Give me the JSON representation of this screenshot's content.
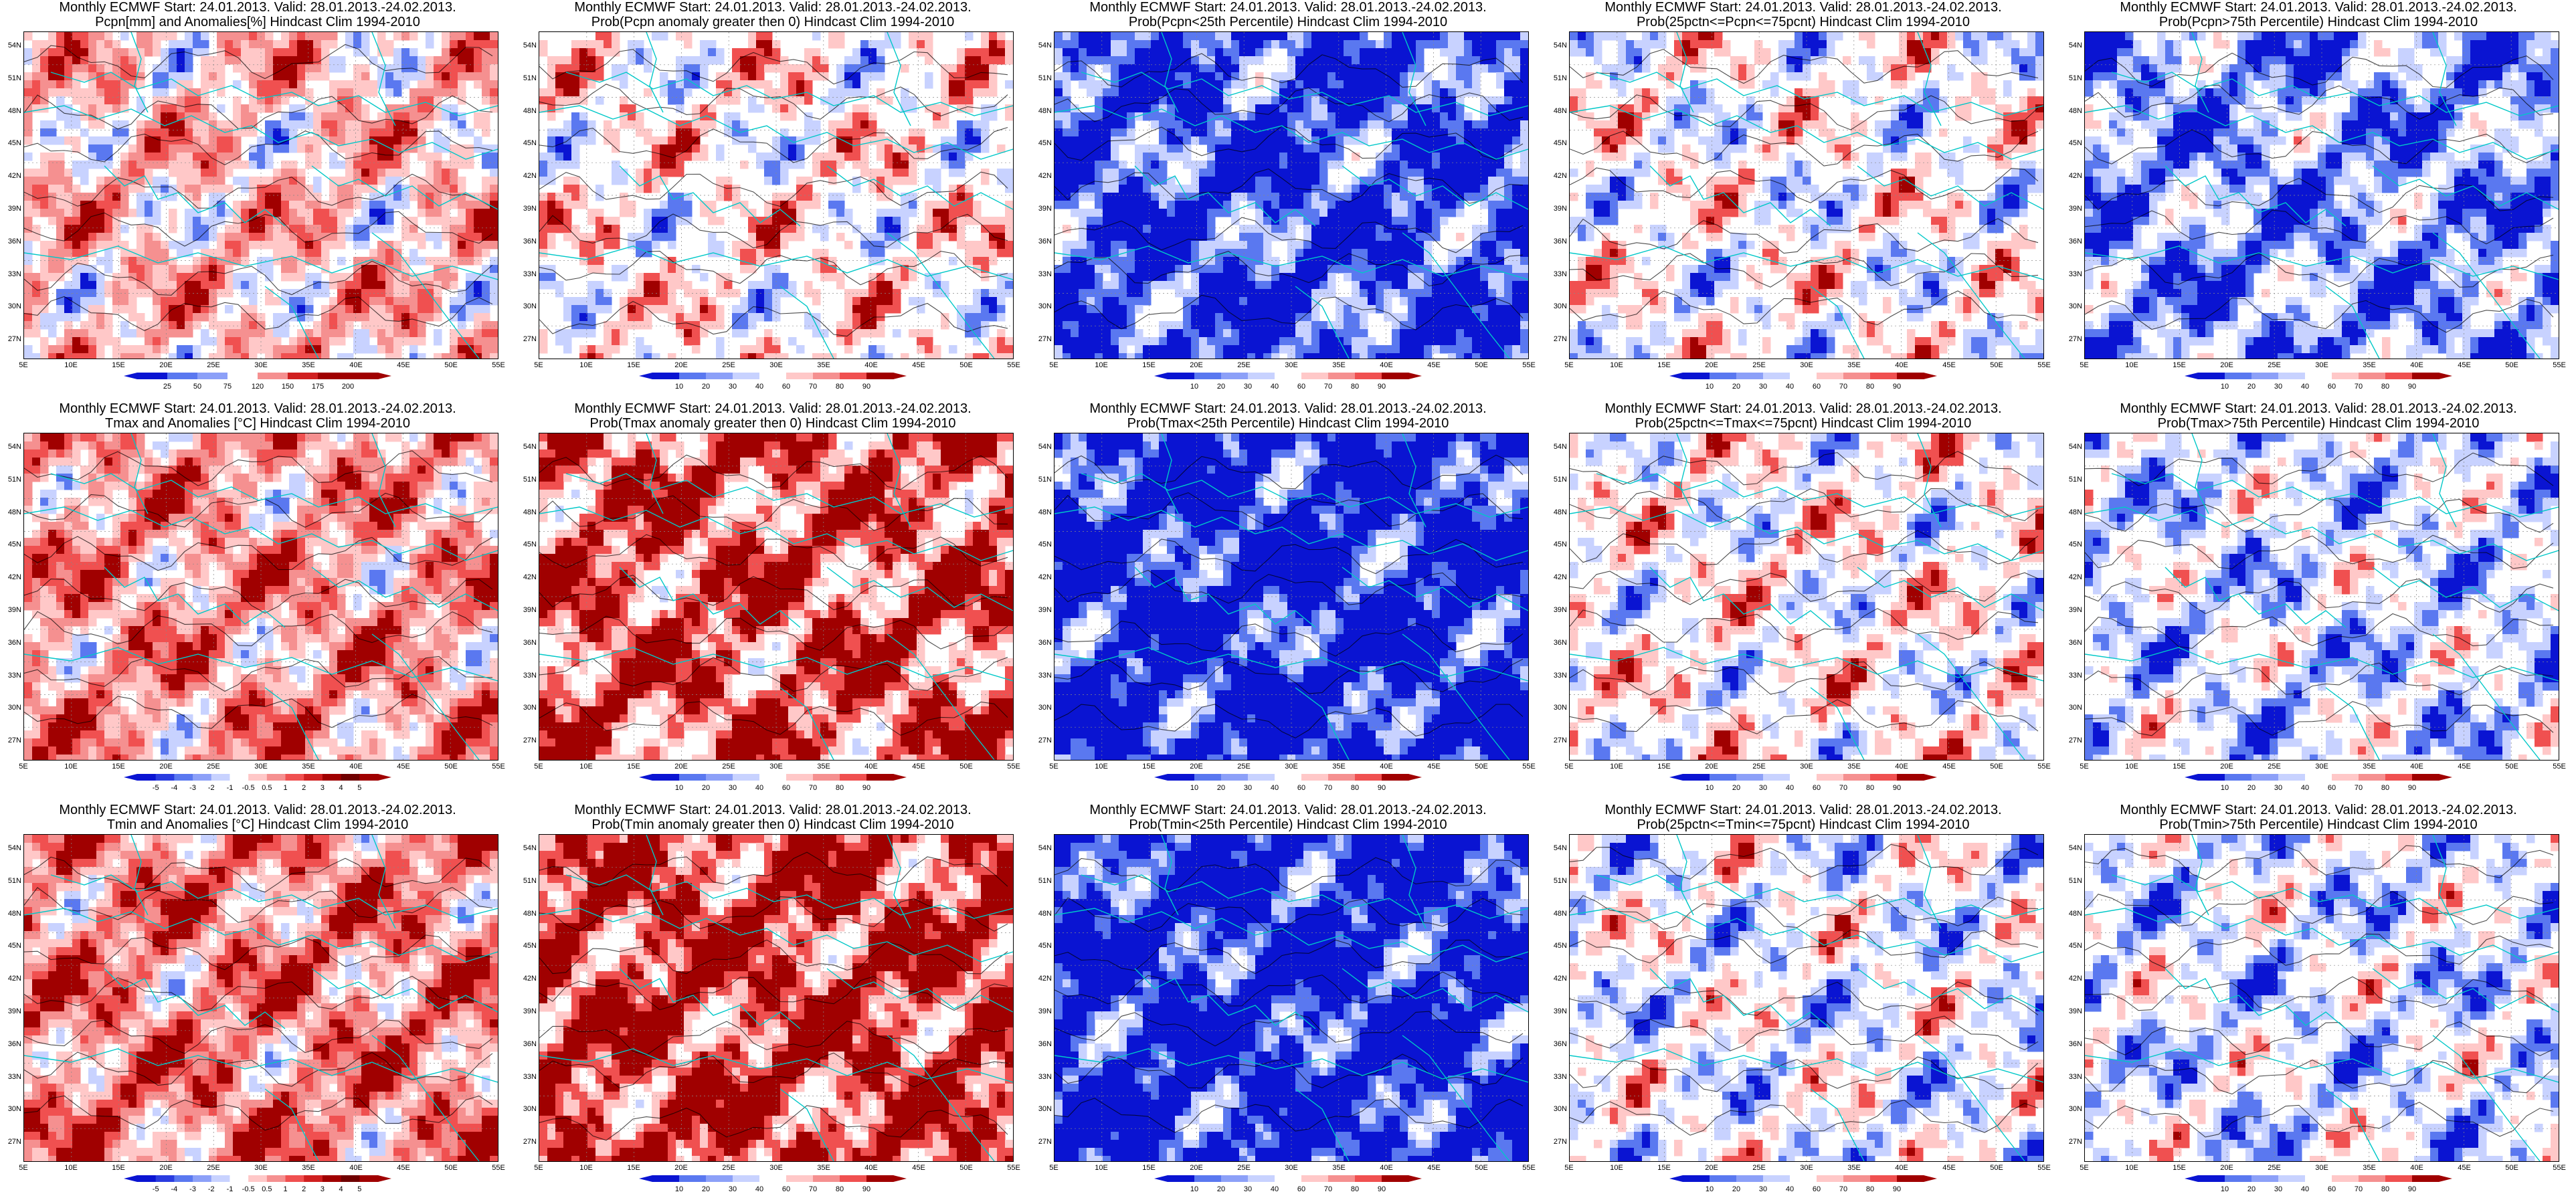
{
  "title_prefix": "Monthly ECMWF Start: 24.01.2013. Valid: 28.01.2013.-24.02.2013.",
  "lat_labels": [
    "54N",
    "51N",
    "48N",
    "45N",
    "42N",
    "39N",
    "36N",
    "33N",
    "30N",
    "27N"
  ],
  "lon_labels": [
    "5E",
    "10E",
    "15E",
    "20E",
    "25E",
    "30E",
    "35E",
    "40E",
    "45E",
    "50E",
    "55E"
  ],
  "colors": {
    "border": "#00c8c8",
    "contour": "#000000",
    "blue_dark": "#0a14d2",
    "blue_mid": "#5a78f0",
    "blue_light": "#c8d2ff",
    "red_light": "#ffc8c8",
    "red_mid": "#f05050",
    "red_dark": "#a00000"
  },
  "panels": [
    {
      "id": "p00",
      "title": "Pcpn[mm] and Anomalies[%] Hindcast Clim 1994-2010",
      "palette": "anom",
      "bias": 0.15,
      "seed": 3,
      "cbar_labels": [
        "25",
        "50",
        "75",
        "120",
        "150",
        "175",
        "200"
      ]
    },
    {
      "id": "p01",
      "title": "Prob(Pcpn anomaly greater then 0) Hindcast Clim 1994-2010",
      "palette": "prob",
      "bias": 0.1,
      "seed": 7,
      "cbar_labels": [
        "10",
        "20",
        "30",
        "40",
        "60",
        "70",
        "80",
        "90"
      ]
    },
    {
      "id": "p02",
      "title": "Prob(Pcpn<25th Percentile) Hindcast Clim 1994-2010",
      "palette": "prob",
      "bias": -0.85,
      "seed": 11,
      "cbar_labels": [
        "10",
        "20",
        "30",
        "40",
        "60",
        "70",
        "80",
        "90"
      ]
    },
    {
      "id": "p03",
      "title": "Prob(25pctn<=Pcpn<=75pcnt) Hindcast Clim 1994-2010",
      "palette": "prob",
      "bias": 0.0,
      "seed": 13,
      "cbar_labels": [
        "10",
        "20",
        "30",
        "40",
        "60",
        "70",
        "80",
        "90"
      ]
    },
    {
      "id": "p04",
      "title": "Prob(Pcpn>75th Percentile) Hindcast Clim 1994-2010",
      "palette": "prob",
      "bias": -0.55,
      "seed": 17,
      "cbar_labels": [
        "10",
        "20",
        "30",
        "40",
        "60",
        "70",
        "80",
        "90"
      ]
    },
    {
      "id": "p10",
      "title": "Tmax and Anomalies [°C] Hindcast Clim 1994-2010",
      "palette": "anom",
      "bias": 0.35,
      "seed": 19,
      "cbar_labels": [
        "-5",
        "-4",
        "-3",
        "-2",
        "-1",
        "-0.5",
        "0.5",
        "1",
        "2",
        "3",
        "4",
        "5"
      ]
    },
    {
      "id": "p11",
      "title": "Prob(Tmax anomaly greater then 0) Hindcast Clim 1994-2010",
      "palette": "prob",
      "bias": 0.7,
      "seed": 23,
      "cbar_labels": [
        "10",
        "20",
        "30",
        "40",
        "60",
        "70",
        "80",
        "90"
      ]
    },
    {
      "id": "p12",
      "title": "Prob(Tmax<25th Percentile) Hindcast Clim 1994-2010",
      "palette": "prob",
      "bias": -1.0,
      "seed": 29,
      "cbar_labels": [
        "10",
        "20",
        "30",
        "40",
        "60",
        "70",
        "80",
        "90"
      ]
    },
    {
      "id": "p13",
      "title": "Prob(25pctn<=Tmax<=75pcnt) Hindcast Clim 1994-2010",
      "palette": "prob",
      "bias": 0.05,
      "seed": 31,
      "cbar_labels": [
        "10",
        "20",
        "30",
        "40",
        "60",
        "70",
        "80",
        "90"
      ]
    },
    {
      "id": "p14",
      "title": "Prob(Tmax>75th Percentile) Hindcast Clim 1994-2010",
      "palette": "prob",
      "bias": -0.25,
      "seed": 37,
      "cbar_labels": [
        "10",
        "20",
        "30",
        "40",
        "60",
        "70",
        "80",
        "90"
      ]
    },
    {
      "id": "p20",
      "title": "Tmin and Anomalies [°C] Hindcast Clim 1994-2010",
      "palette": "anom",
      "bias": 0.45,
      "seed": 41,
      "cbar_labels": [
        "-5",
        "-4",
        "-3",
        "-2",
        "-1",
        "-0.5",
        "0.5",
        "1",
        "2",
        "3",
        "4",
        "5"
      ]
    },
    {
      "id": "p21",
      "title": "Prob(Tmin anomaly greater then 0) Hindcast Clim 1994-2010",
      "palette": "prob",
      "bias": 0.8,
      "seed": 43,
      "cbar_labels": [
        "10",
        "20",
        "30",
        "40",
        "60",
        "70",
        "80",
        "90"
      ]
    },
    {
      "id": "p22",
      "title": "Prob(Tmin<25th Percentile) Hindcast Clim 1994-2010",
      "palette": "prob",
      "bias": -1.0,
      "seed": 47,
      "cbar_labels": [
        "10",
        "20",
        "30",
        "40",
        "60",
        "70",
        "80",
        "90"
      ]
    },
    {
      "id": "p23",
      "title": "Prob(25pctn<=Tmin<=75pcnt) Hindcast Clim 1994-2010",
      "palette": "prob",
      "bias": -0.1,
      "seed": 53,
      "cbar_labels": [
        "10",
        "20",
        "30",
        "40",
        "60",
        "70",
        "80",
        "90"
      ]
    },
    {
      "id": "p24",
      "title": "Prob(Tmin>75th Percentile) Hindcast Clim 1994-2010",
      "palette": "prob",
      "bias": -0.2,
      "seed": 59,
      "cbar_labels": [
        "10",
        "20",
        "30",
        "40",
        "60",
        "70",
        "80",
        "90"
      ]
    }
  ]
}
